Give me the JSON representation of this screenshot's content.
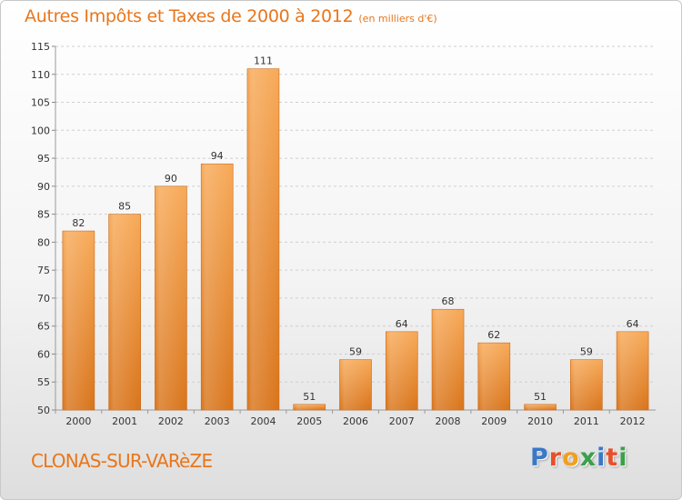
{
  "header": {
    "title": "Autres Impôts et Taxes de 2000 à 2012",
    "subtitle": "(en milliers d'€)"
  },
  "footer": {
    "town": "CLONAS-SUR-VARèZE",
    "logo_text": [
      "P",
      "r",
      "o",
      "x",
      "i",
      "t",
      "i"
    ]
  },
  "chart_data": {
    "type": "bar",
    "title": "Autres Impôts et Taxes de 2000 à 2012",
    "subtitle": "(en milliers d'€)",
    "categories": [
      "2000",
      "2001",
      "2002",
      "2003",
      "2004",
      "2005",
      "2006",
      "2007",
      "2008",
      "2009",
      "2010",
      "2011",
      "2012"
    ],
    "values": [
      82,
      85,
      90,
      94,
      111,
      51,
      59,
      64,
      68,
      62,
      51,
      59,
      64
    ],
    "ylim": [
      50,
      115
    ],
    "yticks": [
      50,
      55,
      60,
      65,
      70,
      75,
      80,
      85,
      90,
      95,
      100,
      105,
      110,
      115
    ],
    "grid": true,
    "bar_color": "#f0922e",
    "bar_color_light": "#f7b06a",
    "bar_color_dark": "#d97818"
  }
}
